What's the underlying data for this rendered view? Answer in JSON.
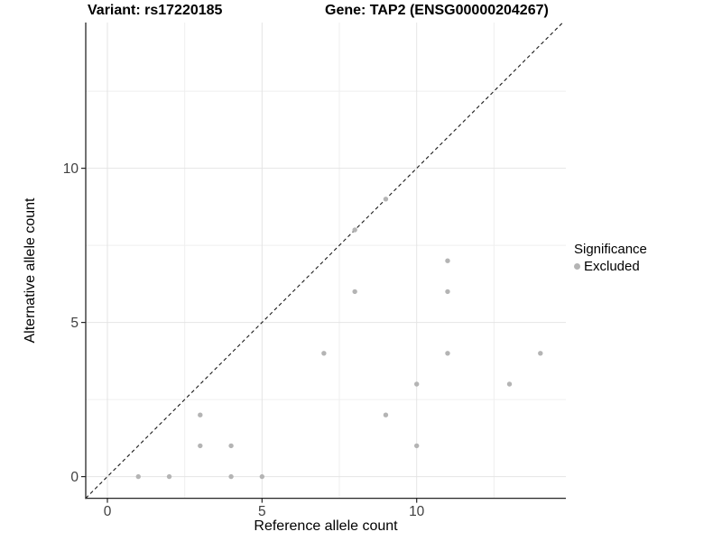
{
  "titles": {
    "variant": "Variant: rs17220185",
    "gene": "Gene: TAP2 (ENSG00000204267)"
  },
  "legend": {
    "title": "Significance",
    "entries": [
      {
        "label": "Excluded",
        "color": "#b4b4b4"
      }
    ]
  },
  "colors": {
    "background": "#ffffff",
    "grid_major": "#e4e4e4",
    "grid_minor": "#efefef",
    "axis_line": "#262626",
    "tick_label": "#404040",
    "identity_line": "#1a1a1a",
    "point": "#b4b4b4"
  },
  "chart_data": {
    "type": "scatter",
    "title": "Variant: rs17220185 — Gene: TAP2 (ENSG00000204267)",
    "xlabel": "Reference allele count",
    "ylabel": "Alternative allele count",
    "xlim": [
      -0.7,
      14.8
    ],
    "ylim": [
      -0.7,
      14.7
    ],
    "x_ticks": [
      0,
      5,
      10
    ],
    "y_ticks": [
      0,
      5,
      10
    ],
    "x_minor_gridlines": [
      2.5,
      7.5,
      12.5
    ],
    "y_minor_gridlines": [
      2.5,
      7.5,
      12.5
    ],
    "grid": true,
    "legend_position": "right",
    "identity_line": {
      "style": "dashed",
      "slope": 1,
      "intercept": 0,
      "from": [
        -0.7,
        -0.7
      ],
      "to": [
        14.72,
        14.72
      ]
    },
    "series": [
      {
        "name": "Excluded",
        "color": "#b4b4b4",
        "points": [
          [
            1,
            0
          ],
          [
            2,
            0
          ],
          [
            3,
            1
          ],
          [
            3,
            2
          ],
          [
            4,
            0
          ],
          [
            4,
            1
          ],
          [
            5,
            0
          ],
          [
            7,
            4
          ],
          [
            8,
            6
          ],
          [
            8,
            8
          ],
          [
            9,
            2
          ],
          [
            9,
            9
          ],
          [
            10,
            1
          ],
          [
            10,
            3
          ],
          [
            11,
            4
          ],
          [
            11,
            6
          ],
          [
            11,
            7
          ],
          [
            13,
            3
          ],
          [
            14,
            4
          ]
        ]
      }
    ]
  }
}
